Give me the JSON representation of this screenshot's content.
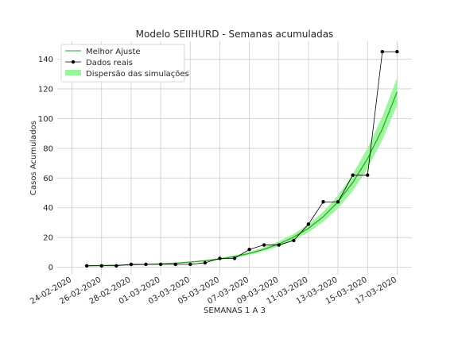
{
  "chart_data": {
    "type": "line",
    "title": "Modelo SEIIHURD - Semanas acumuladas",
    "xlabel": "SEMANAS 1 A 3",
    "ylabel": "Casos Acumulados",
    "x_tick_labels": [
      "24-02-2020",
      "26-02-2020",
      "28-02-2020",
      "01-03-2020",
      "03-03-2020",
      "05-03-2020",
      "07-03-2020",
      "09-03-2020",
      "11-03-2020",
      "13-03-2020",
      "15-03-2020",
      "17-03-2020"
    ],
    "x_tick_dates": [
      "2020-02-24",
      "2020-02-26",
      "2020-02-28",
      "2020-03-01",
      "2020-03-03",
      "2020-03-05",
      "2020-03-07",
      "2020-03-09",
      "2020-03-11",
      "2020-03-13",
      "2020-03-15",
      "2020-03-17"
    ],
    "xlim": [
      "2020-02-23",
      "2020-03-18"
    ],
    "ylim": [
      -5,
      152
    ],
    "y_ticks": [
      0,
      20,
      40,
      60,
      80,
      100,
      120,
      140
    ],
    "grid": true,
    "legend_position": "top-left",
    "series": [
      {
        "name": "Melhor Ajuste",
        "kind": "line",
        "color": "#2ca02c",
        "x": [
          "2020-02-25",
          "2020-02-26",
          "2020-02-27",
          "2020-02-28",
          "2020-02-29",
          "2020-03-01",
          "2020-03-02",
          "2020-03-03",
          "2020-03-04",
          "2020-03-05",
          "2020-03-06",
          "2020-03-07",
          "2020-03-08",
          "2020-03-09",
          "2020-03-10",
          "2020-03-11",
          "2020-03-12",
          "2020-03-13",
          "2020-03-14",
          "2020-03-15",
          "2020-03-16",
          "2020-03-17"
        ],
        "y": [
          1,
          1.2,
          1.4,
          1.6,
          1.9,
          2.3,
          2.8,
          3.5,
          4.4,
          5.6,
          7.2,
          9.3,
          12.1,
          15.7,
          20.3,
          26.2,
          34,
          44,
          57,
          73,
          93,
          118
        ]
      },
      {
        "name": "Dados reais",
        "kind": "line+marker",
        "color": "#000000",
        "x": [
          "2020-02-25",
          "2020-02-26",
          "2020-02-27",
          "2020-02-28",
          "2020-02-29",
          "2020-03-01",
          "2020-03-02",
          "2020-03-03",
          "2020-03-04",
          "2020-03-05",
          "2020-03-06",
          "2020-03-07",
          "2020-03-08",
          "2020-03-09",
          "2020-03-10",
          "2020-03-11",
          "2020-03-12",
          "2020-03-13",
          "2020-03-14",
          "2020-03-15",
          "2020-03-16",
          "2020-03-17"
        ],
        "y": [
          1,
          1,
          1,
          2,
          2,
          2,
          2,
          2,
          3,
          6,
          6,
          12,
          15,
          15,
          18,
          29,
          44,
          44,
          62,
          62,
          145,
          145
        ]
      },
      {
        "name": "Dispersão das simulações",
        "kind": "band",
        "color": "#98f598",
        "x": [
          "2020-02-25",
          "2020-02-26",
          "2020-02-27",
          "2020-02-28",
          "2020-02-29",
          "2020-03-01",
          "2020-03-02",
          "2020-03-03",
          "2020-03-04",
          "2020-03-05",
          "2020-03-06",
          "2020-03-07",
          "2020-03-08",
          "2020-03-09",
          "2020-03-10",
          "2020-03-11",
          "2020-03-12",
          "2020-03-13",
          "2020-03-14",
          "2020-03-15",
          "2020-03-16",
          "2020-03-17"
        ],
        "lower": [
          0.8,
          1,
          1.2,
          1.4,
          1.7,
          2,
          2.5,
          3.1,
          3.9,
          5,
          6.4,
          8.3,
          10.8,
          14,
          18.2,
          23.5,
          30.6,
          39.6,
          51.3,
          66.4,
          85.5,
          108.9
        ],
        "upper": [
          1.2,
          1.4,
          1.6,
          1.8,
          2.1,
          2.6,
          3.1,
          3.9,
          4.9,
          6.2,
          8,
          10.3,
          13.4,
          17.4,
          22.5,
          29,
          37.4,
          48.4,
          62.7,
          80.3,
          101.4,
          127.4
        ]
      }
    ]
  }
}
